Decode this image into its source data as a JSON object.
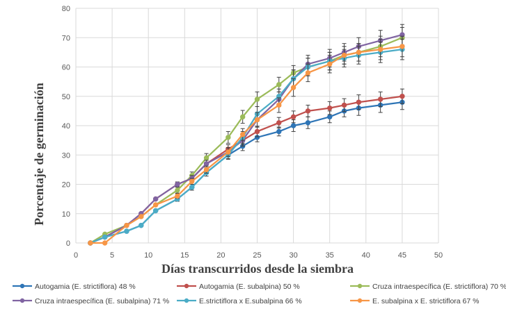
{
  "chart_data": {
    "type": "line",
    "title": "",
    "xlabel": "Días transcurridos desde la siembra",
    "ylabel": "Porcentaje de germinación",
    "xlim": [
      0,
      50
    ],
    "ylim": [
      0,
      80
    ],
    "xticks": [
      0,
      5,
      10,
      15,
      20,
      25,
      30,
      35,
      40,
      45,
      50
    ],
    "yticks": [
      0,
      10,
      20,
      30,
      40,
      50,
      60,
      70,
      80
    ],
    "grid": true,
    "legend_position": "bottom",
    "series": [
      {
        "name": "Autogamia (E. strictiflora) 48 %",
        "color": "#2E75B6",
        "x": [
          2,
          4,
          7,
          9,
          11,
          14,
          16,
          18,
          21,
          23,
          25,
          28,
          30,
          32,
          35,
          37,
          39,
          42,
          45
        ],
        "values": [
          0,
          2,
          4,
          6,
          11,
          15,
          19,
          24,
          30,
          33,
          36,
          38,
          40,
          41,
          43,
          45,
          46,
          47,
          48
        ],
        "errors": [
          0,
          0,
          0,
          0,
          0,
          0,
          0,
          0,
          1.2,
          1.5,
          1.5,
          1.5,
          2,
          2,
          2,
          2,
          2.5,
          2.5,
          2.5
        ]
      },
      {
        "name": "Autogamia (E. subalpina) 50 %",
        "color": "#C0504D",
        "x": [
          2,
          4,
          7,
          9,
          11,
          14,
          16,
          18,
          21,
          23,
          25,
          28,
          30,
          32,
          35,
          37,
          39,
          42,
          45
        ],
        "values": [
          0,
          2,
          6,
          10,
          15,
          20,
          22,
          27,
          32,
          35,
          38,
          41,
          43,
          45,
          46,
          47,
          48,
          49,
          50
        ],
        "errors": [
          0,
          0,
          0,
          0,
          0,
          0.8,
          1,
          1.2,
          1.5,
          1.5,
          1.8,
          1.8,
          2,
          2,
          2.2,
          2.2,
          2.5,
          2.5,
          2.5
        ]
      },
      {
        "name": "Cruza intraespecífica (E. strictiflora) 70 %",
        "color": "#9BBB59",
        "x": [
          2,
          4,
          7,
          9,
          11,
          14,
          16,
          18,
          21,
          23,
          25,
          28,
          30,
          32,
          35,
          37,
          39,
          42,
          45
        ],
        "values": [
          0,
          3,
          6,
          9,
          13,
          18,
          23,
          29,
          36,
          43,
          49,
          54,
          58,
          60,
          62,
          64,
          65,
          67,
          70
        ],
        "errors": [
          0,
          0,
          0,
          0,
          0,
          1,
          1.2,
          1.5,
          2,
          2.2,
          2.5,
          2.5,
          2.5,
          3,
          3,
          3,
          3,
          3.5,
          3.5
        ]
      },
      {
        "name": "Cruza intraespecífica (E. subalpina) 71 %",
        "color": "#8064A2",
        "x": [
          2,
          4,
          7,
          9,
          11,
          14,
          16,
          18,
          21,
          23,
          25,
          28,
          30,
          32,
          35,
          37,
          39,
          42,
          45
        ],
        "values": [
          0,
          2,
          6,
          10,
          15,
          20,
          22,
          27,
          31,
          35,
          42,
          49,
          56,
          61,
          63,
          65,
          67,
          69,
          71
        ],
        "errors": [
          0,
          0,
          0,
          0,
          0,
          0.8,
          1,
          1.2,
          1.5,
          2,
          2.5,
          2.5,
          3,
          3,
          3,
          3,
          3,
          3.5,
          3.5
        ]
      },
      {
        "name": "E.strictiflora x E.subalpina 66 %",
        "color": "#4BACC6",
        "x": [
          2,
          4,
          7,
          9,
          11,
          14,
          16,
          18,
          21,
          23,
          25,
          28,
          30,
          32,
          35,
          37,
          39,
          42,
          45
        ],
        "values": [
          0,
          2,
          4,
          6,
          11,
          15,
          19,
          24,
          30,
          36,
          44,
          50,
          56,
          60,
          62,
          63,
          64,
          65,
          66
        ],
        "errors": [
          0,
          0,
          0,
          0,
          0,
          0.8,
          1,
          1.2,
          1.5,
          2,
          2.5,
          2.5,
          3,
          3,
          3,
          3,
          3,
          3.5,
          3.5
        ]
      },
      {
        "name": "E. subalpina x E. strictiflora 67 %",
        "color": "#F79646",
        "x": [
          2,
          4,
          7,
          9,
          11,
          14,
          16,
          18,
          21,
          23,
          25,
          28,
          30,
          32,
          35,
          37,
          39,
          42,
          45
        ],
        "values": [
          0,
          0,
          6,
          9,
          13,
          16,
          21,
          25,
          31,
          37,
          42,
          47,
          53,
          58,
          61,
          64,
          65,
          66,
          67
        ],
        "errors": [
          0,
          0,
          0,
          0,
          0,
          0.8,
          1,
          1.2,
          1.5,
          2,
          2.5,
          2.5,
          3,
          3,
          3,
          3,
          3,
          3.5,
          3.5
        ]
      }
    ]
  }
}
